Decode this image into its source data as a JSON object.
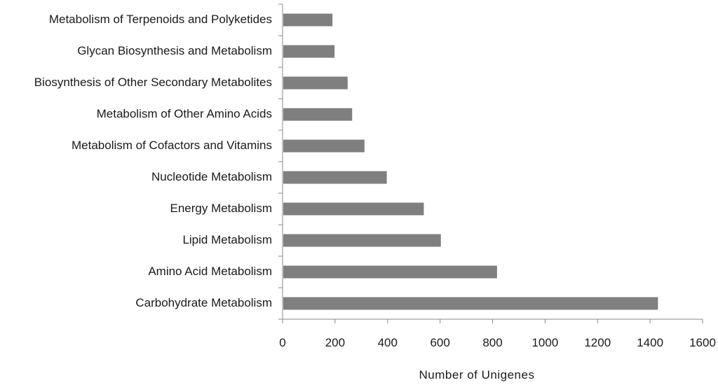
{
  "chart_data": {
    "type": "bar",
    "orientation": "horizontal",
    "title": "",
    "xlabel": "Number of Unigenes",
    "ylabel": "",
    "xlim": [
      0,
      1600
    ],
    "xticks": [
      0,
      200,
      400,
      600,
      800,
      1000,
      1200,
      1400,
      1600
    ],
    "grid": false,
    "bar_color": "#7f7f7f",
    "categories": [
      "Metabolism of Terpenoids and Polyketides",
      "Glycan Biosynthesis and Metabolism",
      "Biosynthesis of Other Secondary Metabolites",
      "Metabolism of Other Amino Acids",
      "Metabolism of Cofactors and Vitamins",
      "Nucleotide Metabolism",
      "Energy Metabolism",
      "Lipid Metabolism",
      "Amino Acid Metabolism",
      "Carbohydrate Metabolism"
    ],
    "values": [
      190,
      198,
      248,
      265,
      312,
      397,
      538,
      603,
      817,
      1430
    ]
  }
}
